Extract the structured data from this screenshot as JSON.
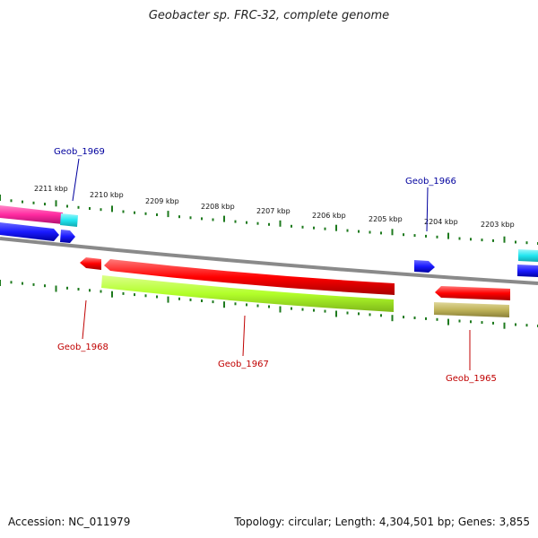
{
  "title": "Geobacter sp. FRC-32, complete genome",
  "footer": {
    "accession": "Accession: NC_011979",
    "summary": "Topology: circular; Length: 4,304,501 bp; Genes: 3,855"
  },
  "ruler": {
    "ticks": [
      "2211 kbp",
      "2210 kbp",
      "2209 kbp",
      "2208 kbp",
      "2207 kbp",
      "2206 kbp",
      "2205 kbp",
      "2204 kbp",
      "2203 kbp"
    ]
  },
  "gene_labels": {
    "geob_1969": "Geob_1969",
    "geob_1966": "Geob_1966",
    "geob_1968": "Geob_1968",
    "geob_1967": "Geob_1967",
    "geob_1965": "Geob_1965"
  },
  "colors": {
    "backbone": "#8a8a8a",
    "ruler_tick": "#1e7a1e",
    "top_label": "#00009e",
    "bottom_label": "#c00000",
    "cds_red": "#ff0000",
    "cds_blue": "#1a1aff",
    "cds_cyan": "#22e6f0",
    "cds_pink": "#ff2aa0",
    "cds_yellowgreen": "#b2ff2a",
    "cds_khaki": "#c0b45a"
  }
}
